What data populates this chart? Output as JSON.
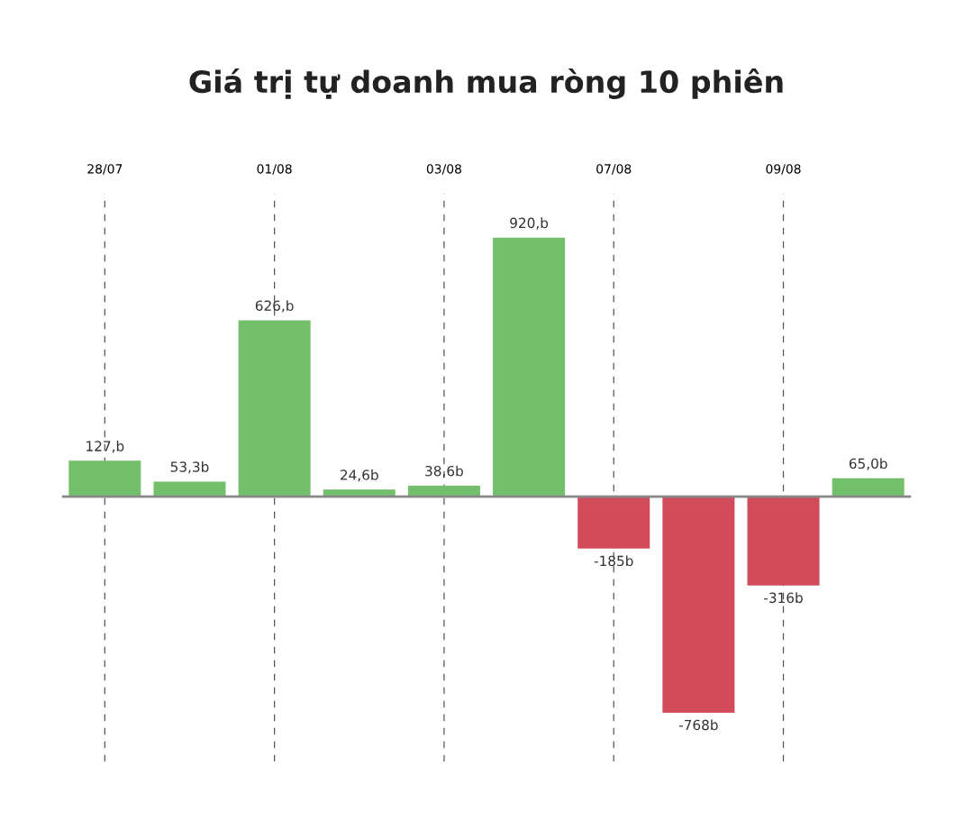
{
  "chart_data": {
    "type": "bar",
    "title": "Giá trị tự doanh mua ròng 10 phiên",
    "categories": [
      "28/07",
      null,
      "01/08",
      null,
      "03/08",
      null,
      "07/08",
      null,
      "09/08",
      null
    ],
    "values": [
      127,
      53.3,
      626,
      24.6,
      38.6,
      920,
      -185,
      -768,
      -316,
      65.0
    ],
    "colors": [
      "#74bf6b",
      "#74bf6b",
      "#74bf6b",
      "#74bf6b",
      "#74bf6b",
      "#74bf6b",
      "#d24b5a",
      "#d24b5a",
      "#d24b5a",
      "#74bf6b"
    ],
    "value_labels": [
      "127,b",
      "53,3b",
      "626,b",
      "24,6b",
      "38,6b",
      "920,b",
      "-185b",
      "-768b",
      "-316b",
      "65,0b"
    ],
    "grid": "x",
    "legend": false
  }
}
